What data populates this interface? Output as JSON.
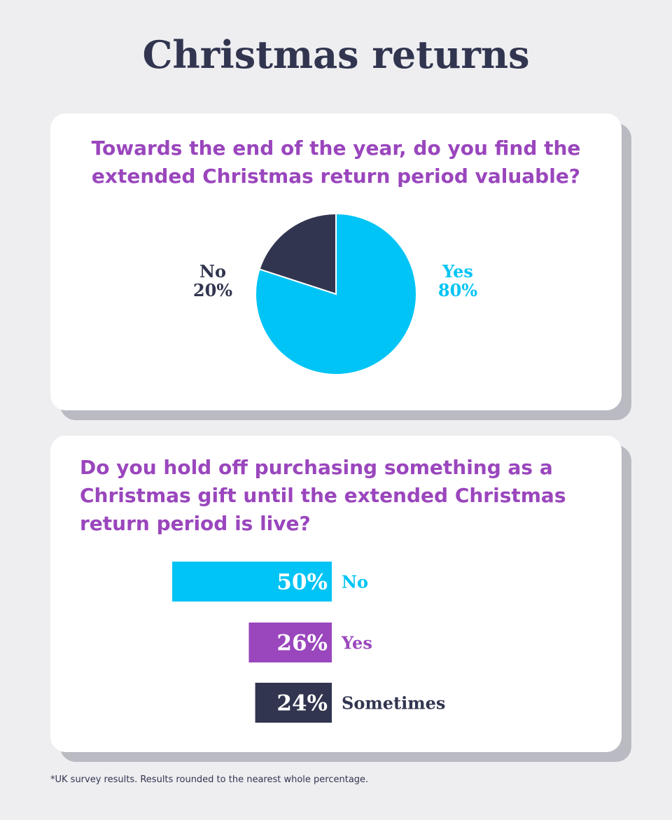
{
  "title": "Christmas returns",
  "colors": {
    "cyan": "#00c4f5",
    "navy": "#31354f",
    "purple": "#9a46bd"
  },
  "footnote": "*UK survey results. Results rounded to the nearest whole percentage.",
  "chart_data": [
    {
      "type": "pie",
      "title": "Towards the end of the year, do you find the extended Christmas return period valuable?",
      "slices": [
        {
          "label": "No",
          "value": 20,
          "value_label": "20%",
          "color": "#31354f"
        },
        {
          "label": "Yes",
          "value": 80,
          "value_label": "80%",
          "color": "#00c4f5"
        }
      ]
    },
    {
      "type": "bar",
      "title": "Do you hold off purchasing something as a Christmas gift until the extended Christmas return period is live?",
      "categories": [
        "No",
        "Yes",
        "Sometimes"
      ],
      "values": [
        50,
        26,
        24
      ],
      "value_labels": [
        "50%",
        "26%",
        "24%"
      ],
      "colors": [
        "#00c4f5",
        "#9a46bd",
        "#31354f"
      ]
    }
  ]
}
